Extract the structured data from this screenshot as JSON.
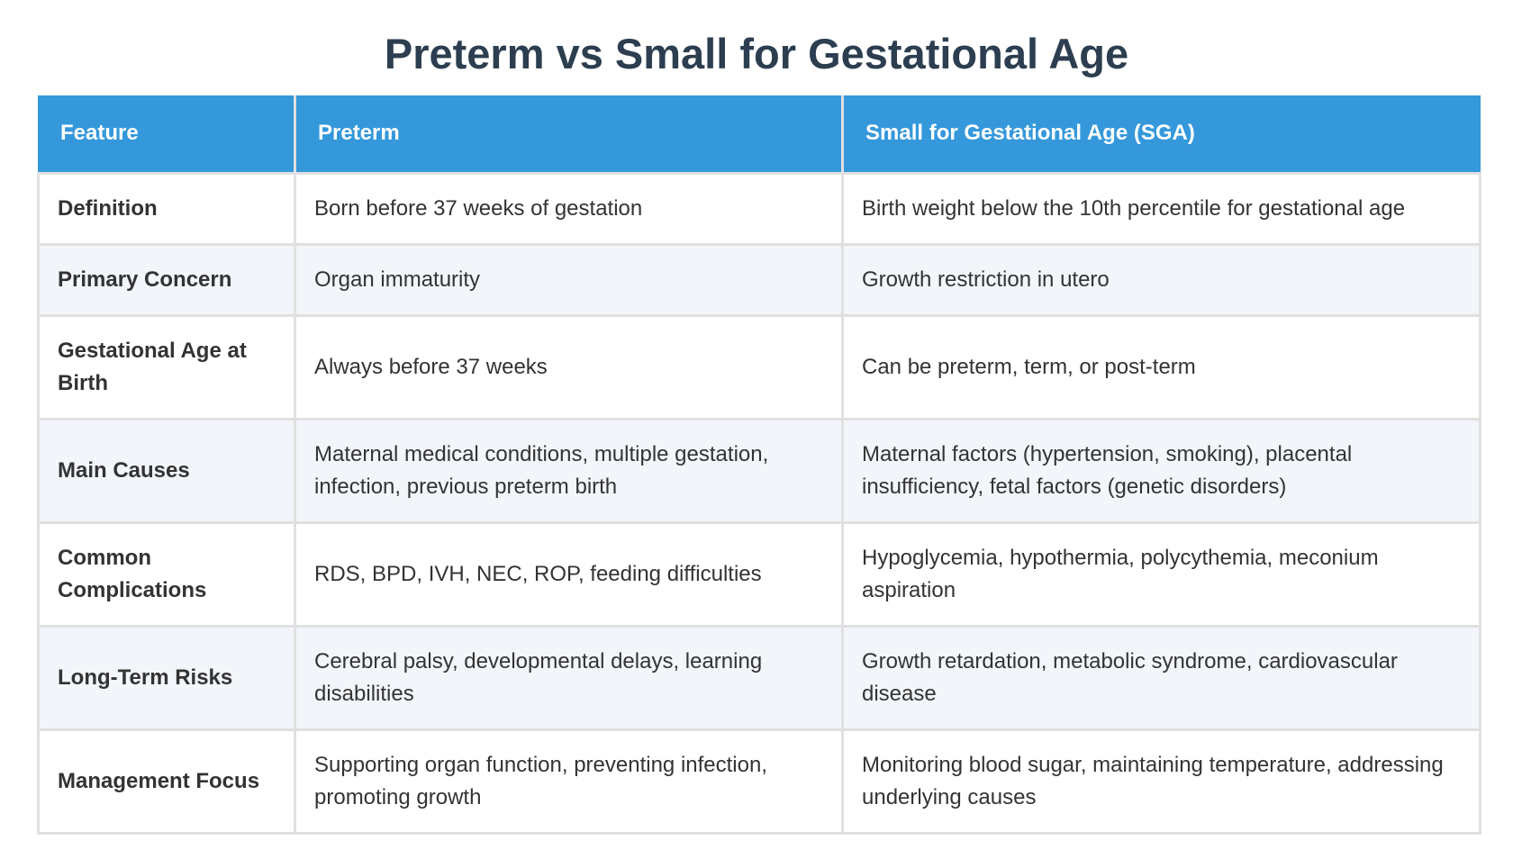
{
  "title": "Preterm vs Small for Gestational Age",
  "table": {
    "headers": [
      "Feature",
      "Preterm",
      "Small for Gestational Age (SGA)"
    ],
    "rows": [
      [
        "Definition",
        "Born before 37 weeks of gestation",
        "Birth weight below the 10th percentile for gestational age"
      ],
      [
        "Primary Concern",
        "Organ immaturity",
        "Growth restriction in utero"
      ],
      [
        "Gestational Age at Birth",
        "Always before 37 weeks",
        "Can be preterm, term, or post-term"
      ],
      [
        "Main Causes",
        "Maternal medical conditions, multiple gestation, infection, previous preterm birth",
        "Maternal factors (hypertension, smoking), placental insufficiency, fetal factors (genetic disorders)"
      ],
      [
        "Common Complications",
        "RDS, BPD, IVH, NEC, ROP, feeding difficulties",
        "Hypoglycemia, hypothermia, polycythemia, meconium aspiration"
      ],
      [
        "Long-Term Risks",
        "Cerebral palsy, developmental delays, learning disabilities",
        "Growth retardation, metabolic syndrome, cardiovascular disease"
      ],
      [
        "Management Focus",
        "Supporting organ function, preventing infection, promoting growth",
        "Monitoring blood sugar, maintaining temperature, addressing underlying causes"
      ]
    ]
  },
  "colors": {
    "title": "#2c3e50",
    "header_background": "#3498db",
    "header_text": "#ffffff",
    "row_alt_background": "#f2f5f9",
    "border": "#e0e0e0"
  }
}
